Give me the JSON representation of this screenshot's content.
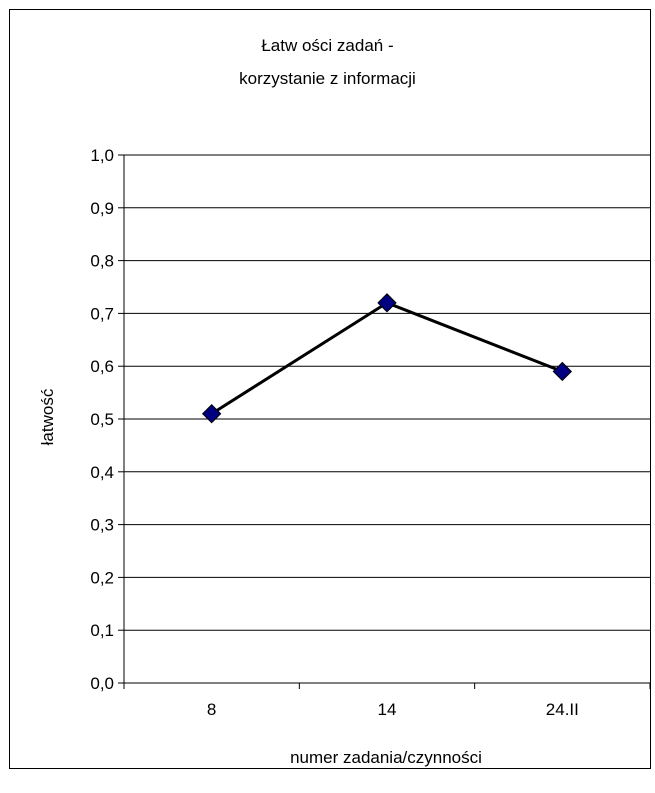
{
  "chart_data": {
    "type": "line",
    "title_lines": [
      "Łatw ości zadań -",
      "korzystanie z informacji"
    ],
    "xlabel": "numer zadania/czynności",
    "ylabel": "łatwość",
    "categories": [
      "8",
      "14",
      "24.II"
    ],
    "series": [
      {
        "values": [
          0.51,
          0.72,
          0.59
        ],
        "color": "#000080",
        "line_color": "#000000",
        "marker": "diamond"
      }
    ],
    "ylim": [
      0,
      1
    ],
    "ytick_step": 0.1,
    "yticks": [
      "0,0",
      "0,1",
      "0,2",
      "0,3",
      "0,4",
      "0,5",
      "0,6",
      "0,7",
      "0,8",
      "0,9",
      "1,0"
    ],
    "grid": true,
    "legend": "none"
  }
}
